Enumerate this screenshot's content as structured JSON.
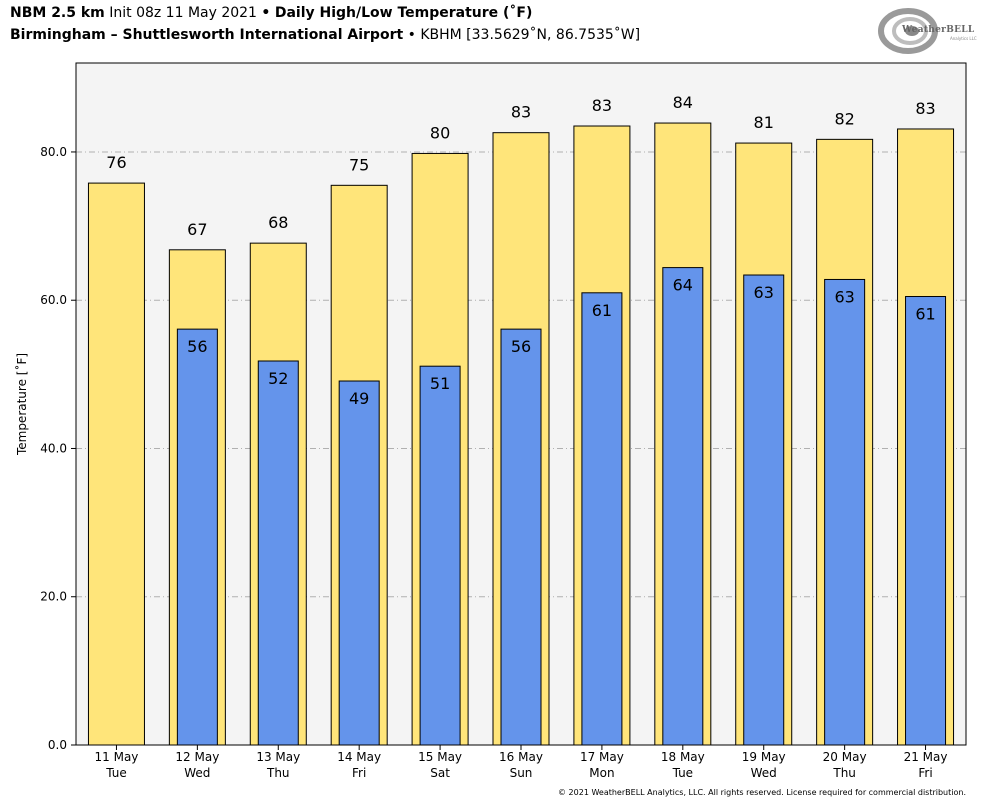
{
  "header": {
    "model": "NBM 2.5 km",
    "init": "Init 08z 11 May 2021",
    "sep": "•",
    "product": "Daily High/Low Temperature (˚F)",
    "location": "Birmingham – Shuttlesworth International Airport",
    "station": "KBHM [33.5629˚N, 86.7535˚W]"
  },
  "logo": {
    "text": "WeatherBELL",
    "sub": "Analytics LLC"
  },
  "footer": "© 2021 WeatherBELL Analytics, LLC. All rights reserved. License required for commercial distribution.",
  "chart_data": {
    "type": "bar",
    "ylabel": "Temperature [˚F]",
    "ylim": [
      0,
      92
    ],
    "yticks": [
      "0.0",
      "20.0",
      "40.0",
      "60.0",
      "80.0"
    ],
    "grid": "horizontal dash-dot",
    "categories": [
      [
        "11 May",
        "Tue"
      ],
      [
        "12 May",
        "Wed"
      ],
      [
        "13 May",
        "Thu"
      ],
      [
        "14 May",
        "Fri"
      ],
      [
        "15 May",
        "Sat"
      ],
      [
        "16 May",
        "Sun"
      ],
      [
        "17 May",
        "Mon"
      ],
      [
        "18 May",
        "Tue"
      ],
      [
        "19 May",
        "Wed"
      ],
      [
        "20 May",
        "Thu"
      ],
      [
        "21 May",
        "Fri"
      ]
    ],
    "series": [
      {
        "values": [
          75.8,
          66.8,
          67.7,
          75.5,
          79.8,
          82.6,
          83.5,
          83.9,
          81.2,
          81.7,
          83.1
        ],
        "labels": [
          "76",
          "67",
          "68",
          "75",
          "80",
          "83",
          "83",
          "84",
          "81",
          "82",
          "83"
        ],
        "color": "#FFE57A"
      },
      {
        "values": [
          null,
          56.1,
          51.8,
          49.1,
          51.1,
          56.1,
          61.0,
          64.4,
          63.4,
          62.8,
          60.5
        ],
        "labels": [
          "",
          "56",
          "52",
          "49",
          "51",
          "56",
          "61",
          "64",
          "63",
          "63",
          "61"
        ],
        "color": "#6494EB"
      }
    ],
    "background": "#F4F4F4"
  }
}
